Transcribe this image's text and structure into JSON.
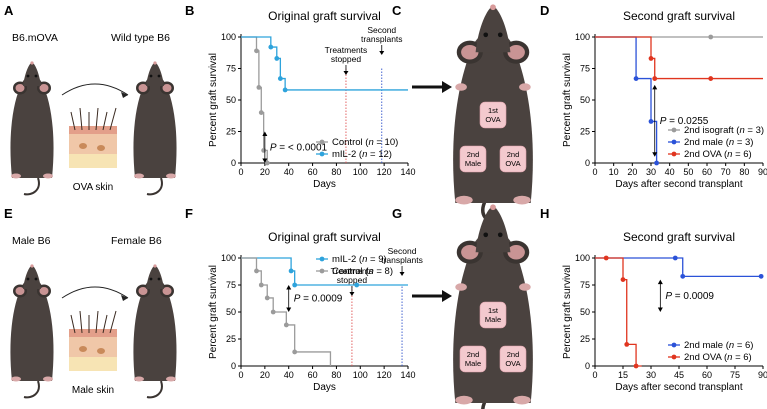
{
  "panel_labels": [
    "A",
    "B",
    "C",
    "D",
    "E",
    "F",
    "G",
    "H"
  ],
  "schematic_A": {
    "donor": "B6.mOVA",
    "recipient": "Wild type B6",
    "tissue": "OVA skin"
  },
  "schematic_E": {
    "donor": "Male B6",
    "recipient": "Female B6",
    "tissue": "Male skin"
  },
  "mouse_C_patches": [
    [
      "1st",
      "OVA"
    ],
    [
      "2nd",
      "Male"
    ],
    [
      "2nd",
      "OVA"
    ]
  ],
  "mouse_G_patches": [
    [
      "1st",
      "Male"
    ],
    [
      "2nd",
      "Male"
    ],
    [
      "2nd",
      "OVA"
    ]
  ],
  "chart_data": [
    {
      "panel": "B",
      "type": "line",
      "title": "Original graft survival",
      "xlabel": "Days",
      "ylabel": "Percent graft survival",
      "xlim": [
        0,
        140
      ],
      "ylim": [
        0,
        100
      ],
      "xticks": [
        0,
        20,
        40,
        60,
        80,
        100,
        120,
        140
      ],
      "yticks": [
        0,
        25,
        50,
        75,
        100
      ],
      "legend_position": "bottom-right",
      "series": [
        {
          "name": "Control (n = 10)",
          "label_pre": "Control (",
          "label_n": "n",
          "label_post": " = 10)",
          "color": "#9b9b9b",
          "x": [
            0,
            13,
            15,
            17,
            19,
            22
          ],
          "y": [
            100,
            89,
            60,
            40,
            10,
            0
          ],
          "markers_x": [
            13,
            15,
            17,
            19,
            22
          ]
        },
        {
          "name": "mIL-2 (n = 12)",
          "label_pre": "mIL-2 (",
          "label_n": "n",
          "label_post": " = 12)",
          "color": "#2ea3dc",
          "x": [
            0,
            25,
            30,
            33,
            37,
            140
          ],
          "y": [
            100,
            92,
            83,
            67,
            58,
            58
          ],
          "markers_x": [
            25,
            30,
            33,
            37
          ]
        }
      ],
      "vlines": [
        {
          "x": 88,
          "color": "#e05555",
          "label": [
            "Treatments",
            "stopped"
          ]
        },
        {
          "x": 118,
          "color": "#3355cc",
          "label": [
            "Second",
            "transplants"
          ]
        }
      ],
      "pvalue": {
        "prefix": "P",
        "text": " = < 0.0001",
        "x": 20,
        "y1": 0,
        "y2": 25
      }
    },
    {
      "panel": "D",
      "type": "line",
      "title": "Second graft survival",
      "xlabel": "Days after second transplant",
      "ylabel": "Percent graft survival",
      "xlim": [
        0,
        90
      ],
      "ylim": [
        0,
        100
      ],
      "xticks": [
        0,
        10,
        20,
        30,
        40,
        50,
        60,
        70,
        80,
        90
      ],
      "yticks": [
        0,
        25,
        50,
        75,
        100
      ],
      "legend_position": "bottom-right",
      "series": [
        {
          "name": "2nd isograft (n = 3)",
          "label_pre": "2nd isograft (",
          "label_n": "n",
          "label_post": " = 3)",
          "color": "#9b9b9b",
          "x": [
            0,
            90
          ],
          "y": [
            100,
            100
          ],
          "markers_x": [
            62
          ]
        },
        {
          "name": "2nd male (n = 3)",
          "label_pre": "2nd male (",
          "label_n": "n",
          "label_post": " = 3)",
          "color": "#2b52d8",
          "x": [
            0,
            22,
            30,
            33
          ],
          "y": [
            100,
            67,
            33,
            0
          ],
          "markers_x": [
            22,
            30,
            33
          ]
        },
        {
          "name": "2nd OVA (n = 6)",
          "label_pre": "2nd OVA (",
          "label_n": "n",
          "label_post": " = 6)",
          "color": "#e0351f",
          "x": [
            0,
            30,
            32,
            90
          ],
          "y": [
            100,
            83,
            67,
            67
          ],
          "markers_x": [
            30,
            32,
            62
          ]
        }
      ],
      "pvalue": {
        "prefix": "P",
        "text": " = 0.0255",
        "x": 32,
        "y1": 5,
        "y2": 62
      }
    },
    {
      "panel": "F",
      "type": "line",
      "title": "Original graft survival",
      "xlabel": "Days",
      "ylabel": "Percent graft survival",
      "xlim": [
        0,
        140
      ],
      "ylim": [
        0,
        100
      ],
      "xticks": [
        0,
        20,
        40,
        60,
        80,
        100,
        120,
        140
      ],
      "yticks": [
        0,
        25,
        50,
        75,
        100
      ],
      "legend_position": "top-right",
      "series": [
        {
          "name": "mIL-2 (n = 9)",
          "label_pre": "mIL-2 (",
          "label_n": "n",
          "label_post": " = 9)",
          "color": "#2ea3dc",
          "x": [
            0,
            42,
            45,
            140
          ],
          "y": [
            100,
            88,
            75,
            75
          ],
          "markers_x": [
            42,
            45,
            97
          ]
        },
        {
          "name": "Control (n = 8)",
          "label_pre": "Control (",
          "label_n": "n",
          "label_post": " = 8)",
          "color": "#9b9b9b",
          "x": [
            0,
            13,
            17,
            22,
            27,
            38,
            45,
            75
          ],
          "y": [
            100,
            88,
            75,
            63,
            50,
            38,
            13,
            0
          ],
          "markers_x": [
            13,
            17,
            22,
            27,
            38,
            45
          ]
        }
      ],
      "vlines": [
        {
          "x": 93,
          "color": "#e05555",
          "label": [
            "Treatments",
            "stopped"
          ]
        },
        {
          "x": 135,
          "color": "#3355cc",
          "label": [
            "Second",
            "transplants"
          ]
        }
      ],
      "pvalue": {
        "prefix": "P",
        "text": " = 0.0009",
        "x": 40,
        "y1": 50,
        "y2": 75
      }
    },
    {
      "panel": "H",
      "type": "line",
      "title": "Second graft survival",
      "xlabel": "Days after second transplant",
      "ylabel": "Percent graft survival",
      "xlim": [
        0,
        90
      ],
      "ylim": [
        0,
        100
      ],
      "xticks": [
        0,
        15,
        30,
        45,
        60,
        75,
        90
      ],
      "yticks": [
        0,
        25,
        50,
        75,
        100
      ],
      "legend_position": "bottom-right",
      "series": [
        {
          "name": "2nd male (n = 6)",
          "label_pre": "2nd male (",
          "label_n": "n",
          "label_post": " = 6)",
          "color": "#2b52d8",
          "x": [
            0,
            43,
            47,
            90
          ],
          "y": [
            100,
            100,
            83,
            83
          ],
          "markers_x": [
            43,
            47,
            89
          ]
        },
        {
          "name": "2nd OVA (n = 6)",
          "label_pre": "2nd OVA (",
          "label_n": "n",
          "label_post": " = 6)",
          "color": "#e0351f",
          "x": [
            0,
            15,
            17,
            22,
            25
          ],
          "y": [
            100,
            80,
            20,
            0,
            0
          ],
          "markers_x": [
            6,
            15,
            17,
            22
          ]
        }
      ],
      "pvalue": {
        "prefix": "P",
        "text": " = 0.0009",
        "x": 35,
        "y1": 50,
        "y2": 80
      }
    }
  ]
}
